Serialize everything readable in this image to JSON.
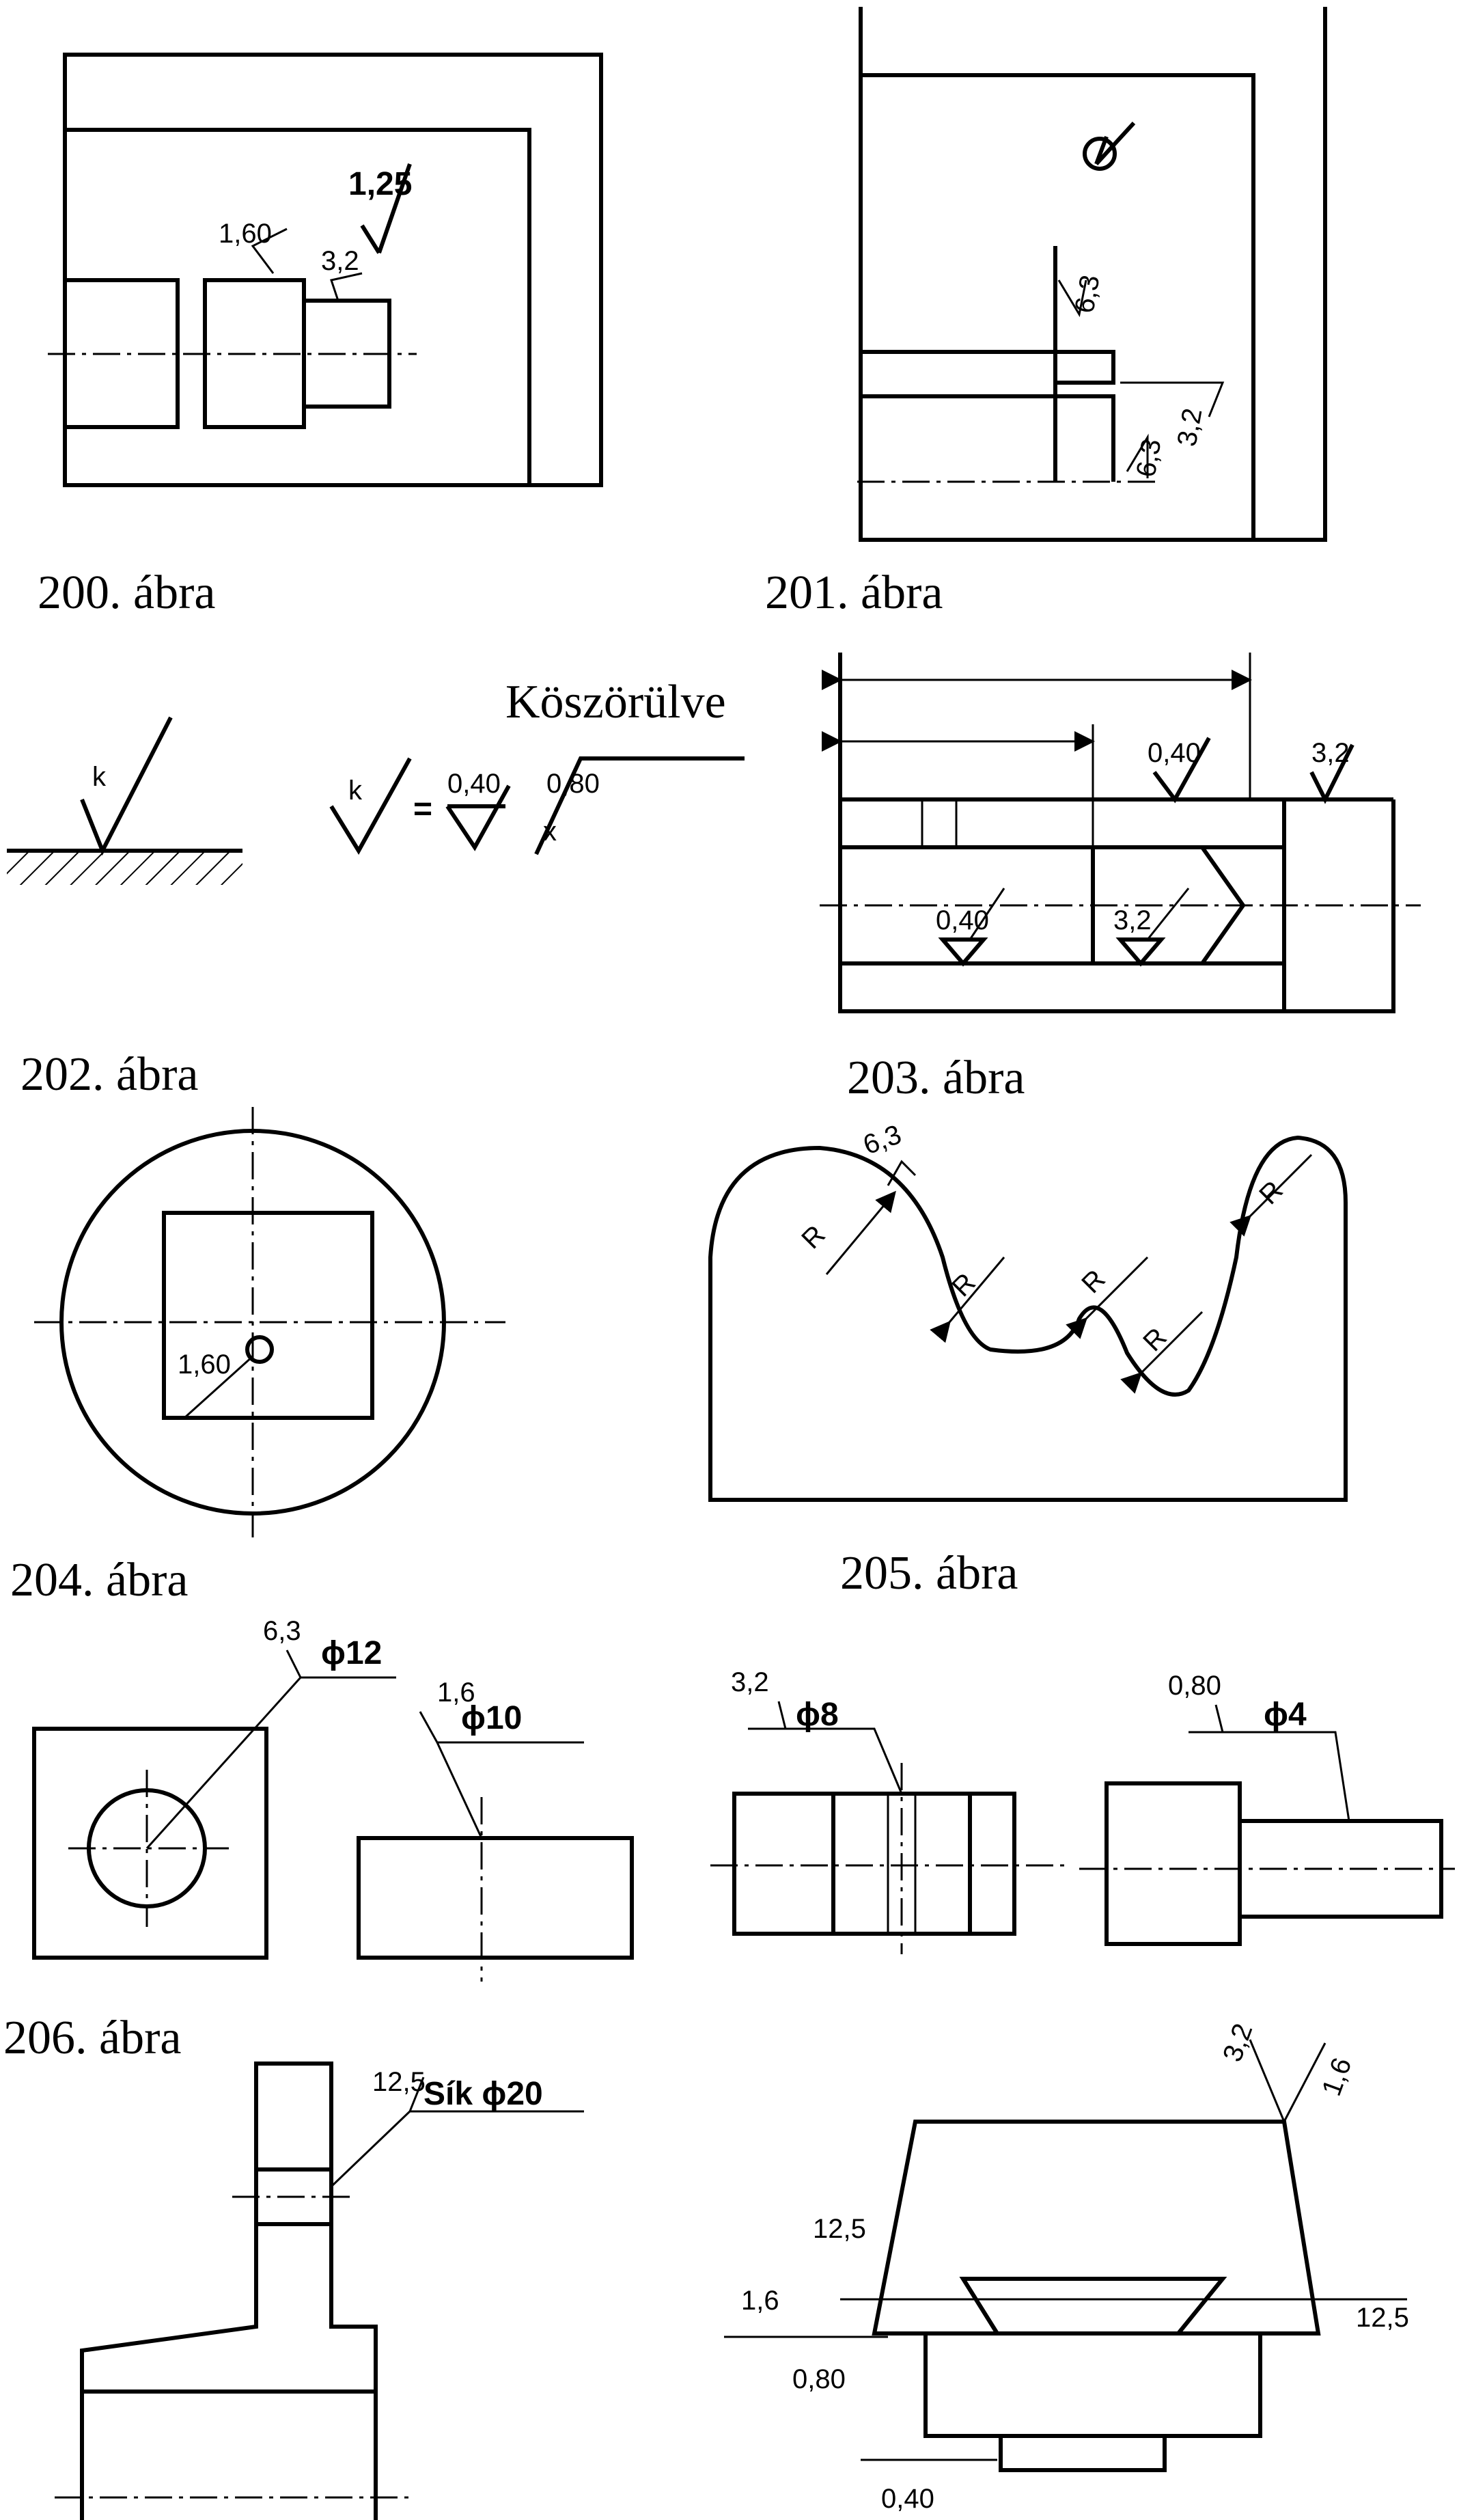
{
  "captions": {
    "f200": "200. ábra",
    "f201": "201. ábra",
    "f202": "202. ábra",
    "f203": "203. ábra",
    "f204": "204. ábra",
    "f205": "205. ábra",
    "f206": "206. ábra"
  },
  "f200": {
    "a": "1,25",
    "b": "1,60",
    "c": "3,2"
  },
  "f201": {
    "a": "6,3",
    "b": "3,2",
    "c": "6,3"
  },
  "f202": {
    "note": "Köszörülve",
    "k1": "k",
    "k2": "k",
    "eq": "=",
    "v1": "0,40",
    "v2": "0,80",
    "x": "x"
  },
  "f203": {
    "a": "0,40",
    "b": "3,2",
    "c": "0,40",
    "d": "3,2"
  },
  "f204": {
    "a": "1,60"
  },
  "f205": {
    "a": "6,3",
    "r1": "R",
    "r2": "R",
    "r3": "R",
    "r4": "R",
    "r5": "R"
  },
  "f206": {
    "a_r": "6,3",
    "a_d": "ϕ12",
    "b_r": "1,6",
    "b_d": "ϕ10",
    "c_r": "3,2",
    "c_d": "ϕ8",
    "d_r": "0,80",
    "d_d": "ϕ4"
  },
  "f207": {
    "a_r": "12,5",
    "a_t": "Sík ϕ20"
  },
  "f208": {
    "a": "3,2",
    "b": "1,6",
    "c": "12,5",
    "d": "1,6",
    "e": "0,80",
    "f": "12,5",
    "g": "0,40"
  }
}
